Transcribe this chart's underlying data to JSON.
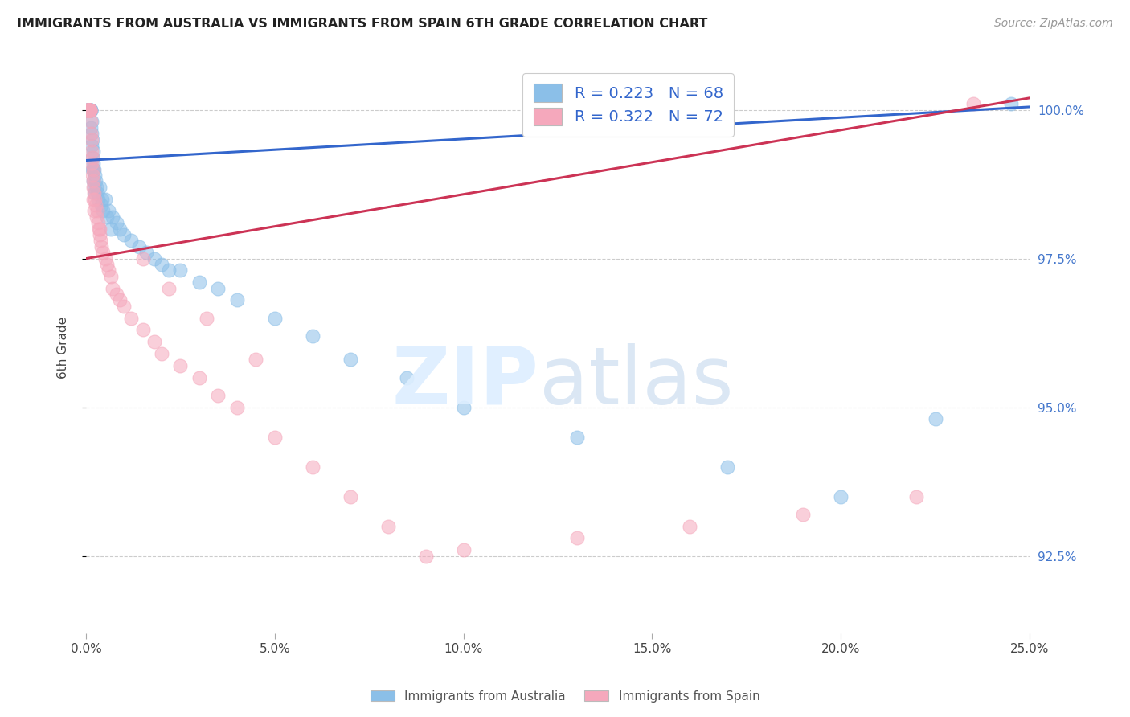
{
  "title": "IMMIGRANTS FROM AUSTRALIA VS IMMIGRANTS FROM SPAIN 6TH GRADE CORRELATION CHART",
  "source": "Source: ZipAtlas.com",
  "ylabel": "6th Grade",
  "aus_color": "#8bbfe8",
  "spa_color": "#f5a8bc",
  "aus_line_color": "#3366cc",
  "spa_line_color": "#cc3355",
  "legend_aus": "R = 0.223   N = 68",
  "legend_spa": "R = 0.322   N = 72",
  "xmin": 0.0,
  "xmax": 25.0,
  "ymin": 91.2,
  "ymax": 100.8,
  "yticks": [
    92.5,
    95.0,
    97.5,
    100.0
  ],
  "ytick_labels": [
    "92.5%",
    "95.0%",
    "97.5%",
    "100.0%"
  ],
  "xticks": [
    0,
    5,
    10,
    15,
    20,
    25
  ],
  "xtick_labels": [
    "0.0%",
    "5.0%",
    "10.0%",
    "15.0%",
    "20.0%",
    "25.0%"
  ],
  "aus_line_x0": 0.0,
  "aus_line_y0": 99.15,
  "aus_line_x1": 25.0,
  "aus_line_y1": 100.05,
  "spa_line_x0": 0.0,
  "spa_line_y0": 97.5,
  "spa_line_x1": 25.0,
  "spa_line_y1": 100.2,
  "australia_x": [
    0.05,
    0.05,
    0.05,
    0.05,
    0.08,
    0.08,
    0.08,
    0.08,
    0.08,
    0.08,
    0.1,
    0.1,
    0.1,
    0.1,
    0.12,
    0.12,
    0.12,
    0.12,
    0.14,
    0.14,
    0.14,
    0.16,
    0.16,
    0.16,
    0.18,
    0.18,
    0.2,
    0.2,
    0.22,
    0.22,
    0.24,
    0.24,
    0.26,
    0.28,
    0.3,
    0.32,
    0.35,
    0.4,
    0.42,
    0.45,
    0.5,
    0.55,
    0.6,
    0.65,
    0.7,
    0.8,
    0.9,
    1.0,
    1.2,
    1.4,
    1.6,
    1.8,
    2.0,
    2.2,
    2.5,
    3.0,
    3.5,
    4.0,
    5.0,
    6.0,
    7.0,
    8.5,
    10.0,
    13.0,
    17.0,
    20.0,
    22.5,
    24.5
  ],
  "australia_y": [
    100.0,
    100.0,
    100.0,
    100.0,
    100.0,
    100.0,
    100.0,
    100.0,
    100.0,
    100.0,
    100.0,
    100.0,
    100.0,
    100.0,
    100.0,
    100.0,
    100.0,
    99.7,
    99.8,
    99.6,
    99.4,
    99.5,
    99.2,
    99.0,
    99.3,
    99.0,
    99.1,
    98.8,
    99.0,
    98.7,
    98.9,
    98.6,
    98.8,
    98.7,
    98.6,
    98.5,
    98.7,
    98.4,
    98.5,
    98.3,
    98.5,
    98.2,
    98.3,
    98.0,
    98.2,
    98.1,
    98.0,
    97.9,
    97.8,
    97.7,
    97.6,
    97.5,
    97.4,
    97.3,
    97.3,
    97.1,
    97.0,
    96.8,
    96.5,
    96.2,
    95.8,
    95.5,
    95.0,
    94.5,
    94.0,
    93.5,
    94.8,
    100.1
  ],
  "spain_x": [
    0.04,
    0.04,
    0.04,
    0.04,
    0.06,
    0.06,
    0.06,
    0.06,
    0.08,
    0.08,
    0.08,
    0.08,
    0.08,
    0.1,
    0.1,
    0.1,
    0.1,
    0.12,
    0.12,
    0.14,
    0.14,
    0.14,
    0.16,
    0.16,
    0.18,
    0.18,
    0.2,
    0.2,
    0.22,
    0.22,
    0.24,
    0.26,
    0.28,
    0.3,
    0.32,
    0.34,
    0.36,
    0.38,
    0.4,
    0.45,
    0.5,
    0.55,
    0.6,
    0.65,
    0.7,
    0.8,
    0.9,
    1.0,
    1.2,
    1.5,
    1.8,
    2.0,
    2.5,
    3.0,
    3.5,
    4.0,
    5.0,
    6.0,
    7.0,
    8.0,
    9.0,
    10.0,
    13.0,
    16.0,
    19.0,
    22.0,
    23.5,
    3.2,
    4.5,
    1.5,
    2.2,
    0.35
  ],
  "spain_y": [
    100.0,
    100.0,
    100.0,
    100.0,
    100.0,
    100.0,
    100.0,
    100.0,
    100.0,
    100.0,
    100.0,
    100.0,
    100.0,
    100.0,
    100.0,
    100.0,
    100.0,
    99.8,
    99.6,
    99.5,
    99.3,
    99.1,
    99.2,
    98.9,
    99.0,
    98.7,
    98.8,
    98.5,
    98.6,
    98.3,
    98.5,
    98.4,
    98.2,
    98.3,
    98.1,
    98.0,
    97.9,
    97.8,
    97.7,
    97.6,
    97.5,
    97.4,
    97.3,
    97.2,
    97.0,
    96.9,
    96.8,
    96.7,
    96.5,
    96.3,
    96.1,
    95.9,
    95.7,
    95.5,
    95.2,
    95.0,
    94.5,
    94.0,
    93.5,
    93.0,
    92.5,
    92.6,
    92.8,
    93.0,
    93.2,
    93.5,
    100.1,
    96.5,
    95.8,
    97.5,
    97.0,
    98.0
  ]
}
